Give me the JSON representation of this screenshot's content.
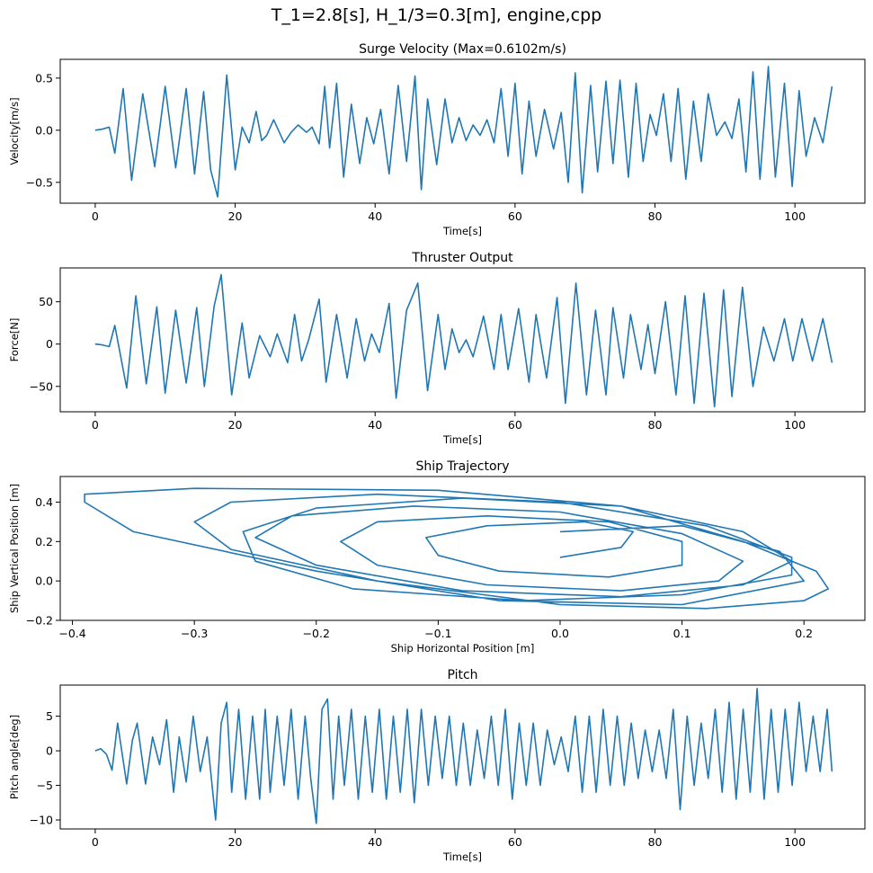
{
  "figure": {
    "suptitle": "T_1=2.8[s], H_1/3=0.3[m], engine,cpp"
  },
  "colors": {
    "line": "#1f77b4",
    "axis": "#000000",
    "background": "#ffffff"
  },
  "chart_data": [
    {
      "type": "line",
      "title": "Surge Velocity (Max=0.6102m/s)",
      "xlabel": "Time[s]",
      "ylabel": "Velocity[m/s]",
      "xlim": [
        -5,
        110
      ],
      "ylim": [
        -0.7,
        0.68
      ],
      "xticks": [
        0,
        20,
        40,
        60,
        80,
        100
      ],
      "yticks": [
        -0.5,
        0.0,
        0.5
      ],
      "xtick_labels": [
        "0",
        "20",
        "40",
        "60",
        "80",
        "100"
      ],
      "ytick_labels": [
        "−0.5",
        "0.0",
        "0.5"
      ],
      "grid": false,
      "series": [
        {
          "x": [
            0,
            1,
            2,
            2.8,
            4,
            5.2,
            6.8,
            8.5,
            10,
            11.5,
            13,
            14.2,
            15.5,
            16.5,
            17.5,
            18.8,
            20,
            21,
            22,
            23,
            23.8,
            24.5,
            25.5,
            27,
            28,
            29,
            30.2,
            31,
            32,
            32.8,
            33.5,
            34.5,
            35.5,
            36.6,
            37.8,
            38.8,
            39.8,
            40.8,
            42,
            43.3,
            44.5,
            45.7,
            46.6,
            47.5,
            48.8,
            50,
            51,
            52,
            53,
            54,
            55,
            56,
            57,
            58,
            59,
            60,
            61,
            62,
            63,
            64.2,
            65.5,
            66.6,
            67.6,
            68.6,
            69.6,
            70.8,
            71.8,
            73,
            74,
            75,
            76.2,
            77.3,
            78.3,
            79.3,
            80.2,
            81.2,
            82.3,
            83.3,
            84.4,
            85.5,
            86.6,
            87.6,
            88.8,
            90,
            91,
            92,
            93,
            94,
            95,
            96.2,
            97.2,
            98.5,
            99.6,
            100.6,
            101.6,
            102.8,
            104,
            105.3
          ],
          "y": [
            0,
            0.01,
            0.03,
            -0.22,
            0.4,
            -0.48,
            0.35,
            -0.35,
            0.42,
            -0.36,
            0.4,
            -0.42,
            0.37,
            -0.38,
            -0.64,
            0.53,
            -0.38,
            0.03,
            -0.12,
            0.18,
            -0.1,
            -0.05,
            0.1,
            -0.12,
            -0.02,
            0.05,
            -0.02,
            0.03,
            -0.13,
            0.42,
            -0.17,
            0.45,
            -0.45,
            0.25,
            -0.32,
            0.12,
            -0.13,
            0.2,
            -0.42,
            0.43,
            -0.3,
            0.52,
            -0.57,
            0.3,
            -0.33,
            0.3,
            -0.12,
            0.12,
            -0.1,
            0.05,
            -0.05,
            0.1,
            -0.12,
            0.4,
            -0.25,
            0.45,
            -0.42,
            0.28,
            -0.25,
            0.2,
            -0.18,
            0.17,
            -0.5,
            0.55,
            -0.6,
            0.43,
            -0.4,
            0.47,
            -0.32,
            0.48,
            -0.45,
            0.45,
            -0.3,
            0.15,
            -0.05,
            0.35,
            -0.3,
            0.4,
            -0.47,
            0.28,
            -0.3,
            0.35,
            -0.05,
            0.08,
            -0.08,
            0.3,
            -0.4,
            0.56,
            -0.47,
            0.61,
            -0.45,
            0.45,
            -0.54,
            0.38,
            -0.25,
            0.12,
            -0.12,
            0.42
          ]
        }
      ]
    },
    {
      "type": "line",
      "title": "Thruster Output",
      "xlabel": "Time[s]",
      "ylabel": "Force[N]",
      "xlim": [
        -5,
        110
      ],
      "ylim": [
        -80,
        90
      ],
      "xticks": [
        0,
        20,
        40,
        60,
        80,
        100
      ],
      "yticks": [
        -50,
        0,
        50
      ],
      "xtick_labels": [
        "0",
        "20",
        "40",
        "60",
        "80",
        "100"
      ],
      "ytick_labels": [
        "−50",
        "0",
        "50"
      ],
      "grid": false,
      "series": [
        {
          "x": [
            0,
            1,
            2,
            2.8,
            4.5,
            5.8,
            7.3,
            8.8,
            10,
            11.5,
            13,
            14.5,
            15.6,
            17,
            18,
            19.5,
            21,
            22,
            23.5,
            25,
            26,
            27.5,
            28.5,
            29.5,
            30.5,
            32,
            33,
            34.5,
            36,
            37.3,
            38.5,
            39.5,
            40.6,
            42,
            43,
            44.5,
            46.1,
            47.5,
            49,
            50,
            51,
            52,
            53,
            54,
            55.5,
            57,
            58,
            59,
            60.5,
            62,
            63,
            64.5,
            66,
            67.2,
            68.7,
            70.2,
            71.5,
            73,
            74,
            75.5,
            76.5,
            78,
            79,
            80,
            81.5,
            83,
            84.3,
            85.6,
            87,
            88.5,
            89.8,
            91,
            92.5,
            94,
            95.5,
            97,
            98.5,
            99.7,
            101,
            102.5,
            104,
            105.3
          ],
          "y": [
            0,
            -1,
            -3,
            22,
            -52,
            57,
            -47,
            44,
            -58,
            40,
            -46,
            43,
            -50,
            45,
            82,
            -60,
            25,
            -40,
            10,
            -15,
            12,
            -22,
            35,
            -20,
            5,
            53,
            -45,
            35,
            -40,
            30,
            -20,
            12,
            -10,
            48,
            -64,
            40,
            72,
            -55,
            35,
            -30,
            18,
            -10,
            5,
            -15,
            33,
            -30,
            35,
            -30,
            42,
            -45,
            35,
            -40,
            55,
            -70,
            72,
            -60,
            40,
            -60,
            43,
            -40,
            35,
            -30,
            23,
            -35,
            50,
            -60,
            57,
            -70,
            60,
            -74,
            64,
            -62,
            67,
            -50,
            20,
            -20,
            30,
            -20,
            30,
            -20,
            30,
            -22
          ]
        }
      ]
    },
    {
      "type": "line",
      "title": "Ship Trajectory",
      "xlabel": "Ship Horizontal Position [m]",
      "ylabel": "Ship Vertical Position [m]",
      "xlim": [
        -0.41,
        0.25
      ],
      "ylim": [
        -0.2,
        0.53
      ],
      "xticks": [
        -0.4,
        -0.3,
        -0.2,
        -0.1,
        0.0,
        0.1,
        0.2
      ],
      "yticks": [
        -0.2,
        0.0,
        0.2,
        0.4
      ],
      "xtick_labels": [
        "−0.4",
        "−0.3",
        "−0.2",
        "−0.1",
        "0.0",
        "0.1",
        "0.2"
      ],
      "ytick_labels": [
        "−0.2",
        "0.0",
        "0.2",
        "0.4"
      ],
      "grid": false,
      "series": [
        {
          "x": [
            0,
            0.1,
            0.18,
            0.2,
            0.1,
            -0.05,
            -0.2,
            -0.35,
            -0.39,
            -0.39,
            -0.3,
            -0.1,
            0.05,
            0.15,
            0.21,
            0.22,
            0.2,
            0.12,
            0,
            -0.15,
            -0.27,
            -0.3,
            -0.27,
            -0.15,
            0,
            0.12,
            0.19,
            0.19,
            0.1,
            -0.03,
            -0.17,
            -0.25,
            -0.26,
            -0.2,
            -0.08,
            0.05,
            0.15,
            0.19,
            0.15,
            0.05,
            -0.08,
            -0.2,
            -0.25,
            -0.22,
            -0.12,
            0,
            0.1,
            0.15,
            0.13,
            0.05,
            -0.06,
            -0.15,
            -0.18,
            -0.15,
            -0.06,
            0.04,
            0.1,
            0.1,
            0.04,
            -0.05,
            -0.1,
            -0.11,
            -0.06,
            0.02,
            0.06,
            0.05,
            0
          ],
          "y": [
            0.25,
            0.28,
            0.15,
            0,
            -0.12,
            -0.1,
            0.05,
            0.25,
            0.4,
            0.44,
            0.47,
            0.46,
            0.38,
            0.2,
            0.05,
            -0.04,
            -0.1,
            -0.14,
            -0.12,
            0,
            0.16,
            0.3,
            0.4,
            0.44,
            0.4,
            0.28,
            0.12,
            0.03,
            -0.07,
            -0.1,
            -0.04,
            0.1,
            0.25,
            0.37,
            0.42,
            0.38,
            0.25,
            0.1,
            -0.02,
            -0.08,
            -0.05,
            0.08,
            0.22,
            0.33,
            0.38,
            0.35,
            0.24,
            0.1,
            0,
            -0.05,
            -0.02,
            0.08,
            0.2,
            0.3,
            0.33,
            0.3,
            0.2,
            0.08,
            0.02,
            0.05,
            0.13,
            0.22,
            0.28,
            0.3,
            0.25,
            0.17,
            0.12
          ]
        }
      ]
    },
    {
      "type": "line",
      "title": "Pitch",
      "xlabel": "Time[s]",
      "ylabel": "Pitch angle[deg]",
      "xlim": [
        -5,
        110
      ],
      "ylim": [
        -11.3,
        9.5
      ],
      "xticks": [
        0,
        20,
        40,
        60,
        80,
        100
      ],
      "yticks": [
        -10,
        -5,
        0,
        5
      ],
      "xtick_labels": [
        "0",
        "20",
        "40",
        "60",
        "80",
        "100"
      ],
      "ytick_labels": [
        "−10",
        "−5",
        "0",
        "5"
      ],
      "grid": false,
      "series": [
        {
          "x": [
            0,
            0.8,
            1.6,
            2.4,
            3.2,
            4.5,
            5.3,
            6,
            7.2,
            8.2,
            9.2,
            10.2,
            11.2,
            12,
            13,
            14,
            15,
            16,
            17.2,
            18,
            18.8,
            19.5,
            20.5,
            21.5,
            22.5,
            23.5,
            24.3,
            25,
            26,
            27,
            28,
            29,
            30,
            30.8,
            31.6,
            32.4,
            33.2,
            34,
            34.8,
            35.6,
            36.6,
            37.6,
            38.6,
            39.6,
            40.6,
            41.6,
            42.6,
            43.6,
            44.6,
            45.6,
            46.6,
            47.6,
            48.6,
            49.6,
            50.6,
            51.6,
            52.6,
            53.6,
            54.6,
            55.6,
            56.6,
            57.6,
            58.6,
            59.6,
            60.6,
            61.6,
            62.6,
            63.6,
            64.6,
            65.6,
            66.6,
            67.6,
            68.6,
            69.6,
            70.6,
            71.6,
            72.6,
            73.6,
            74.6,
            75.6,
            76.6,
            77.6,
            78.6,
            79.6,
            80.6,
            81.6,
            82.6,
            83.6,
            84.6,
            85.6,
            86.6,
            87.6,
            88.6,
            89.6,
            90.6,
            91.6,
            92.6,
            93.6,
            94.6,
            95.6,
            96.6,
            97.6,
            98.6,
            99.6,
            100.6,
            101.6,
            102.6,
            103.6,
            104.6,
            105.3
          ],
          "y": [
            0,
            0.3,
            -0.5,
            -2.8,
            4,
            -4.8,
            1.5,
            4,
            -4.8,
            2,
            -2,
            4.5,
            -6,
            2,
            -4.5,
            5,
            -3,
            2,
            -10,
            4,
            7,
            -6,
            6,
            -7,
            5,
            -7,
            6,
            -6,
            5,
            -5,
            6,
            -7,
            5,
            -4,
            -10.5,
            6,
            7.5,
            -7,
            5,
            -5,
            6,
            -7,
            5,
            -6,
            6,
            -7,
            5,
            -6,
            6,
            -7.5,
            6,
            -5,
            5,
            -4,
            5,
            -5,
            4,
            -5,
            3,
            -4,
            5,
            -5,
            6,
            -7,
            4,
            -5,
            4,
            -5,
            3,
            -2,
            2,
            -3,
            5,
            -6,
            5,
            -6,
            6,
            -5,
            5,
            -5,
            4,
            -4,
            3,
            -3,
            3,
            -4,
            6,
            -8.5,
            5,
            -5,
            4,
            -4,
            6,
            -6,
            7,
            -7,
            6,
            -6,
            9,
            -7,
            6,
            -6,
            6,
            -5,
            7,
            -3,
            5,
            -3,
            6,
            -3
          ]
        }
      ]
    }
  ]
}
